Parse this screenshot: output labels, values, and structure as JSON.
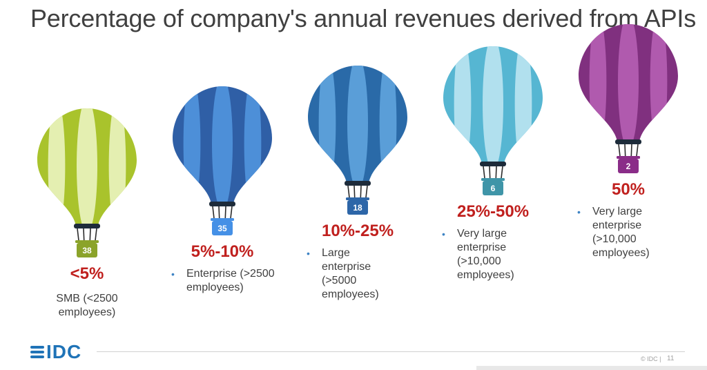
{
  "title": "Percentage of company's annual revenues derived from APIs",
  "chart_data": {
    "type": "other",
    "title": "Percentage of company's annual revenues derived from APIs",
    "categories": [
      "<5%",
      "5%-10%",
      "10%-25%",
      "25%-50%",
      "50%"
    ],
    "values": [
      38,
      35,
      18,
      6,
      2
    ],
    "descriptions": [
      [
        "SMB (<2500",
        "employees)"
      ],
      [
        "Enterprise (>2500",
        "employees)"
      ],
      [
        "Large",
        "enterprise",
        "(>5000",
        "employees)"
      ],
      [
        "Very large",
        "enterprise",
        "(>10,000",
        "employees)"
      ],
      [
        "Very large",
        "enterprise",
        "(>10,000",
        "employees)"
      ]
    ],
    "bulleted": [
      false,
      true,
      true,
      true,
      true
    ],
    "colors": [
      {
        "dark": "#a9c32c",
        "light": "#e4efb1",
        "basket": "#8ba32a"
      },
      {
        "dark": "#2f5fa6",
        "light": "#4d8fd8",
        "basket": "#4590e6"
      },
      {
        "dark": "#2a6aa8",
        "light": "#5a9ed8",
        "basket": "#2d66a8"
      },
      {
        "dark": "#56b6d2",
        "light": "#b1e0ee",
        "basket": "#3f95a8"
      },
      {
        "dark": "#80307f",
        "light": "#b05aae",
        "basket": "#8a2d88"
      }
    ]
  },
  "logo": "IDC",
  "footer": {
    "copyright": "© IDC |",
    "page": "11"
  }
}
